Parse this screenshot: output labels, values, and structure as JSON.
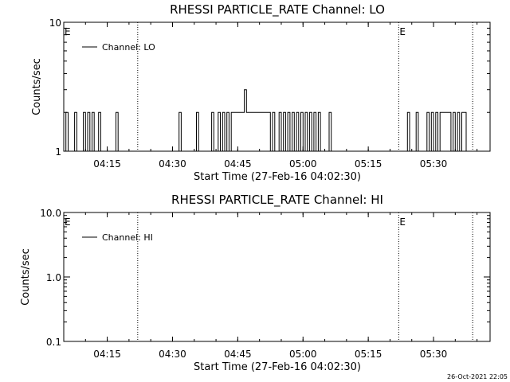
{
  "footer": {
    "timestamp": "26-Oct-2021 22:05"
  },
  "chart_data": [
    {
      "type": "line",
      "title": "RHESSI PARTICLE_RATE Channel: LO",
      "xlabel": "Start Time (27-Feb-16 04:02:30)",
      "ylabel": "Counts/sec",
      "yscale": "log",
      "ylim": [
        1,
        10
      ],
      "xlim": [
        "04:05",
        "05:43"
      ],
      "x_ticks": [
        "04:15",
        "04:30",
        "04:45",
        "05:00",
        "05:15",
        "05:30"
      ],
      "y_ticks": [
        "1",
        "10"
      ],
      "grid": false,
      "legend": {
        "position": "top-left",
        "entries": [
          "Channel: LO"
        ]
      },
      "markers": [
        {
          "label": "E",
          "at": "04:05"
        },
        {
          "label": "E",
          "at": "05:22"
        }
      ],
      "vlines": [
        "04:22",
        "05:22",
        "05:39"
      ],
      "series": [
        {
          "name": "Channel: LO",
          "step": true,
          "x": [
            "04:05:00",
            "04:05:30",
            "04:06:00",
            "04:06:30",
            "04:07:30",
            "04:08:00",
            "04:08:30",
            "04:09:30",
            "04:10:00",
            "04:10:30",
            "04:11:00",
            "04:11:30",
            "04:12:00",
            "04:12:30",
            "04:13:00",
            "04:13:30",
            "04:14:00",
            "04:16:30",
            "04:17:00",
            "04:17:30",
            "04:22:00",
            "04:27:30",
            "04:31:00",
            "04:31:30",
            "04:32:00",
            "04:35:00",
            "04:35:30",
            "04:36:00",
            "04:38:30",
            "04:39:00",
            "04:39:30",
            "04:40:00",
            "04:40:30",
            "04:41:00",
            "04:41:30",
            "04:42:00",
            "04:42:30",
            "04:43:00",
            "04:43:30",
            "04:44:00",
            "04:46:00",
            "04:46:30",
            "04:47:00",
            "04:47:30",
            "04:48:00",
            "04:52:00",
            "04:52:30",
            "04:53:00",
            "04:53:30",
            "04:54:00",
            "04:54:30",
            "04:55:00",
            "04:55:30",
            "04:56:00",
            "04:56:30",
            "04:57:00",
            "04:57:30",
            "04:58:00",
            "04:58:30",
            "04:59:00",
            "04:59:30",
            "05:00:00",
            "05:00:30",
            "05:01:00",
            "05:01:30",
            "05:02:00",
            "05:02:30",
            "05:03:00",
            "05:03:30",
            "05:04:00",
            "05:05:30",
            "05:06:00",
            "05:06:30",
            "05:22:00",
            "05:23:30",
            "05:24:00",
            "05:24:30",
            "05:25:30",
            "05:26:00",
            "05:26:30",
            "05:28:00",
            "05:28:30",
            "05:29:00",
            "05:29:30",
            "05:30:00",
            "05:30:30",
            "05:31:00",
            "05:31:30",
            "05:32:00",
            "05:32:30",
            "05:33:00",
            "05:33:30",
            "05:34:00",
            "05:34:30",
            "05:35:00",
            "05:35:30",
            "05:36:00",
            "05:36:30",
            "05:37:00",
            "05:37:30"
          ],
          "y": [
            1,
            2,
            1,
            1,
            2,
            1,
            1,
            2,
            1,
            2,
            1,
            2,
            1,
            1,
            2,
            1,
            1,
            1,
            2,
            1,
            1,
            1,
            1,
            2,
            1,
            1,
            2,
            1,
            1,
            2,
            1,
            1,
            2,
            1,
            2,
            1,
            2,
            1,
            2,
            2,
            2,
            3,
            2,
            2,
            2,
            2,
            1,
            2,
            1,
            1,
            2,
            1,
            2,
            1,
            2,
            1,
            2,
            1,
            2,
            1,
            2,
            1,
            2,
            1,
            2,
            1,
            2,
            1,
            2,
            1,
            1,
            2,
            1,
            1,
            1,
            2,
            1,
            1,
            2,
            1,
            1,
            2,
            1,
            2,
            1,
            2,
            1,
            2,
            2,
            2,
            2,
            2,
            1,
            2,
            1,
            2,
            1,
            2,
            2,
            1
          ]
        }
      ]
    },
    {
      "type": "line",
      "title": "RHESSI PARTICLE_RATE Channel: HI",
      "xlabel": "Start Time (27-Feb-16 04:02:30)",
      "ylabel": "Counts/sec",
      "yscale": "log",
      "ylim": [
        0.1,
        10
      ],
      "xlim": [
        "04:05",
        "05:43"
      ],
      "x_ticks": [
        "04:15",
        "04:30",
        "04:45",
        "05:00",
        "05:15",
        "05:30"
      ],
      "y_ticks": [
        "0.1",
        "1.0",
        "10.0"
      ],
      "grid": false,
      "legend": {
        "position": "top-left",
        "entries": [
          "Channel: HI"
        ]
      },
      "markers": [
        {
          "label": "E",
          "at": "04:05"
        },
        {
          "label": "E",
          "at": "05:22"
        }
      ],
      "vlines": [
        "04:22",
        "05:22",
        "05:39"
      ],
      "series": [
        {
          "name": "Channel: HI",
          "x": [],
          "y": []
        }
      ]
    }
  ]
}
